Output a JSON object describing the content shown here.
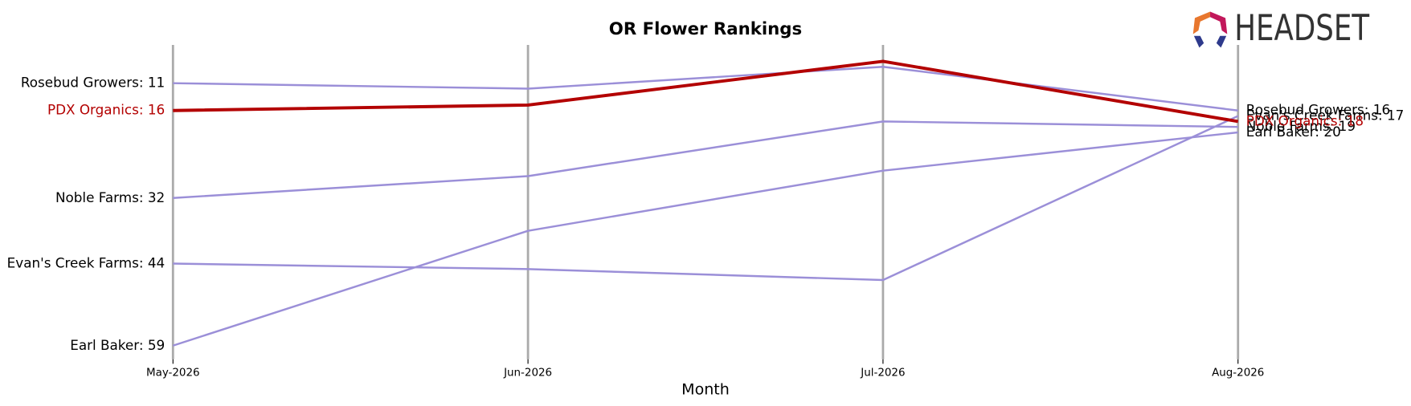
{
  "logo_text": "HEADSET",
  "chart_data": {
    "type": "bump",
    "title": "OR Flower Rankings",
    "xlabel": "Month",
    "categories": [
      "May-2026",
      "Jun-2026",
      "Jul-2026",
      "Aug-2026"
    ],
    "ylim": [
      61.5,
      4
    ],
    "grid": true,
    "series": [
      {
        "name": "Rosebud Growers",
        "color": "#9b8fd8",
        "values": [
          11,
          12,
          8,
          16
        ],
        "value_labels": [
          "Rosebud Growers: 11",
          null,
          null,
          "Rosebud Growers: 16"
        ]
      },
      {
        "name": "Noble Farms",
        "color": "#9b8fd8",
        "values": [
          32,
          28,
          18,
          19
        ],
        "value_labels": [
          "Noble Farms: 32",
          null,
          null,
          "Noble Farms: 19"
        ]
      },
      {
        "name": "Evan's Creek Farms",
        "color": "#9b8fd8",
        "values": [
          44,
          45,
          47,
          17
        ],
        "value_labels": [
          "Evan's Creek Farms: 44",
          null,
          null,
          "Evan's Creek Farms: 17"
        ]
      },
      {
        "name": "Earl Baker",
        "color": "#9b8fd8",
        "values": [
          59,
          38,
          27,
          20
        ],
        "value_labels": [
          "Earl Baker: 59",
          null,
          null,
          "Earl Baker: 20"
        ]
      },
      {
        "name": "PDX Organics",
        "color": "#b30000",
        "highlight": true,
        "values": [
          16,
          15,
          7,
          18
        ],
        "value_labels": [
          "PDX Organics: 16",
          null,
          null,
          "PDX Organics: 18"
        ]
      }
    ]
  }
}
